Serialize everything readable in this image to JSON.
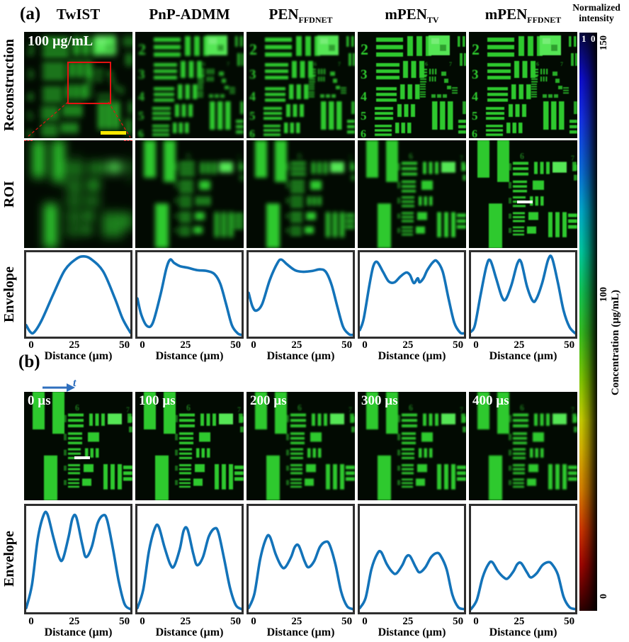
{
  "panel_a": {
    "label": "(a)",
    "columns": [
      {
        "title": "TwIST",
        "sub": ""
      },
      {
        "title": "PnP-ADMM",
        "sub": ""
      },
      {
        "title": "PEN",
        "sub": "FFDNET"
      },
      {
        "title": "mPEN",
        "sub": "TV"
      },
      {
        "title": "mPEN",
        "sub": "FFDNET"
      }
    ],
    "row_labels": {
      "reconstruction": "Reconstruction",
      "roi": "ROI",
      "envelope": "Envelope"
    },
    "concentration_label": "100 µg/mL"
  },
  "panel_b": {
    "label": "(b)",
    "time_axis_label": "t",
    "row_label": "Envelope",
    "times": [
      "0 µs",
      "100 µs",
      "200 µs",
      "300 µs",
      "400 µs"
    ]
  },
  "colorbar": {
    "title_line1": "Normalized",
    "title_line2": "intensity",
    "intensity_max": "1",
    "intensity_min": "0",
    "conc_top": "150",
    "conc_mid": "100",
    "conc_bottom": "0",
    "conc_axis_label": "Concentration (µg/mL)"
  },
  "axis": {
    "xlabel": "Distance (µm)",
    "ticks": [
      "0",
      "25",
      "50"
    ]
  },
  "usaf_digits": [
    "2",
    "3",
    "4",
    "5",
    "6"
  ],
  "roi_digits": [
    "6",
    "7"
  ],
  "colors": {
    "curve": "#1373b9",
    "green": "#2ec92e",
    "bright_green": "#55e655",
    "marker_red": "#e31212",
    "scalebar_yellow": "#ffe800",
    "arrow_blue": "#2f6fbe"
  },
  "chart_data": [
    {
      "type": "line",
      "panel": "a",
      "name": "TwIST",
      "xlabel": "Distance (µm)",
      "xticks": [
        0,
        25,
        50
      ],
      "xlim": [
        0,
        54
      ],
      "ylim": [
        0,
        1
      ],
      "x": [
        0,
        2,
        4,
        8,
        14,
        20,
        26,
        30,
        34,
        40,
        46,
        50,
        54
      ],
      "y": [
        0.12,
        0.04,
        0.03,
        0.18,
        0.5,
        0.8,
        0.94,
        0.97,
        0.93,
        0.78,
        0.45,
        0.2,
        0.03
      ]
    },
    {
      "type": "line",
      "panel": "a",
      "name": "PnP-ADMM",
      "xlabel": "Distance (µm)",
      "xticks": [
        0,
        25,
        50
      ],
      "xlim": [
        0,
        54
      ],
      "ylim": [
        0,
        1
      ],
      "x": [
        0,
        2,
        5,
        8,
        12,
        15,
        17,
        19,
        22,
        26,
        31,
        36,
        40,
        43,
        46,
        49,
        52,
        54
      ],
      "y": [
        0.45,
        0.25,
        0.11,
        0.15,
        0.5,
        0.82,
        0.93,
        0.89,
        0.85,
        0.83,
        0.8,
        0.79,
        0.75,
        0.63,
        0.38,
        0.12,
        0.02,
        0.0
      ]
    },
    {
      "type": "line",
      "panel": "a",
      "name": "PEN_FFDNET",
      "xlabel": "Distance (µm)",
      "xticks": [
        0,
        25,
        50
      ],
      "xlim": [
        0,
        54
      ],
      "ylim": [
        0,
        1
      ],
      "x": [
        0,
        2,
        4,
        7,
        11,
        15,
        17,
        20,
        24,
        28,
        33,
        37,
        40,
        43,
        46,
        49,
        52,
        54
      ],
      "y": [
        0.52,
        0.35,
        0.3,
        0.38,
        0.68,
        0.89,
        0.93,
        0.87,
        0.8,
        0.78,
        0.79,
        0.81,
        0.78,
        0.62,
        0.35,
        0.1,
        0.01,
        0.0
      ]
    },
    {
      "type": "line",
      "panel": "a",
      "name": "mPEN_TV",
      "xlabel": "Distance (µm)",
      "xticks": [
        0,
        25,
        50
      ],
      "xlim": [
        0,
        54
      ],
      "ylim": [
        0,
        1
      ],
      "x": [
        0,
        2,
        5,
        7,
        9,
        12,
        15,
        18,
        21,
        24,
        26,
        28,
        30,
        31,
        33,
        35,
        38,
        40,
        43,
        46,
        49,
        52,
        54
      ],
      "y": [
        0.06,
        0.2,
        0.62,
        0.85,
        0.9,
        0.78,
        0.66,
        0.65,
        0.72,
        0.77,
        0.74,
        0.64,
        0.7,
        0.65,
        0.7,
        0.8,
        0.9,
        0.91,
        0.78,
        0.45,
        0.15,
        0.03,
        0.02
      ]
    },
    {
      "type": "line",
      "panel": "a",
      "name": "mPEN_FFDNET",
      "xlabel": "Distance (µm)",
      "xticks": [
        0,
        25,
        50
      ],
      "xlim": [
        0,
        54
      ],
      "ylim": [
        0,
        1
      ],
      "x": [
        0,
        2,
        5,
        8,
        10,
        13,
        16,
        18,
        21,
        24,
        26,
        29,
        32,
        34,
        37,
        40,
        42,
        45,
        48,
        51,
        54
      ],
      "y": [
        0.04,
        0.12,
        0.5,
        0.85,
        0.92,
        0.7,
        0.47,
        0.44,
        0.62,
        0.88,
        0.9,
        0.6,
        0.42,
        0.45,
        0.65,
        0.93,
        0.95,
        0.65,
        0.3,
        0.1,
        0.02
      ]
    },
    {
      "type": "line",
      "panel": "b",
      "name": "0 µs",
      "xlabel": "Distance (µm)",
      "xticks": [
        0,
        25,
        50
      ],
      "xlim": [
        0,
        54
      ],
      "ylim": [
        0,
        1
      ],
      "x": [
        0,
        3,
        6,
        9,
        11,
        14,
        17,
        19,
        22,
        24,
        26,
        29,
        31,
        34,
        37,
        40,
        42,
        45,
        48,
        51,
        54
      ],
      "y": [
        0.02,
        0.25,
        0.7,
        0.93,
        0.94,
        0.72,
        0.52,
        0.5,
        0.72,
        0.9,
        0.91,
        0.65,
        0.52,
        0.62,
        0.85,
        0.93,
        0.88,
        0.6,
        0.28,
        0.06,
        0.01
      ]
    },
    {
      "type": "line",
      "panel": "b",
      "name": "100 µs",
      "xlabel": "Distance (µm)",
      "xticks": [
        0,
        25,
        50
      ],
      "xlim": [
        0,
        54
      ],
      "ylim": [
        0,
        1
      ],
      "x": [
        0,
        3,
        6,
        9,
        11,
        14,
        17,
        19,
        22,
        24,
        26,
        29,
        31,
        34,
        37,
        40,
        42,
        45,
        48,
        51,
        54
      ],
      "y": [
        0.02,
        0.2,
        0.58,
        0.8,
        0.82,
        0.62,
        0.45,
        0.43,
        0.6,
        0.78,
        0.79,
        0.55,
        0.44,
        0.52,
        0.72,
        0.8,
        0.76,
        0.5,
        0.22,
        0.05,
        0.01
      ]
    },
    {
      "type": "line",
      "panel": "b",
      "name": "200 µs",
      "xlabel": "Distance (µm)",
      "xticks": [
        0,
        25,
        50
      ],
      "xlim": [
        0,
        54
      ],
      "ylim": [
        0,
        1
      ],
      "x": [
        0,
        3,
        6,
        9,
        11,
        14,
        17,
        19,
        22,
        24,
        26,
        29,
        31,
        34,
        37,
        40,
        42,
        45,
        48,
        51,
        54
      ],
      "y": [
        0.02,
        0.16,
        0.5,
        0.7,
        0.72,
        0.55,
        0.43,
        0.42,
        0.52,
        0.62,
        0.63,
        0.48,
        0.42,
        0.48,
        0.62,
        0.67,
        0.64,
        0.45,
        0.18,
        0.04,
        0.01
      ]
    },
    {
      "type": "line",
      "panel": "b",
      "name": "300 µs",
      "xlabel": "Distance (µm)",
      "xticks": [
        0,
        25,
        50
      ],
      "xlim": [
        0,
        54
      ],
      "ylim": [
        0,
        1
      ],
      "x": [
        0,
        3,
        6,
        9,
        11,
        14,
        17,
        19,
        22,
        24,
        26,
        29,
        31,
        34,
        37,
        40,
        42,
        45,
        48,
        51,
        54
      ],
      "y": [
        0.02,
        0.12,
        0.4,
        0.55,
        0.57,
        0.45,
        0.37,
        0.36,
        0.44,
        0.52,
        0.53,
        0.42,
        0.37,
        0.42,
        0.52,
        0.56,
        0.53,
        0.4,
        0.15,
        0.03,
        0.01
      ]
    },
    {
      "type": "line",
      "panel": "b",
      "name": "400 µs",
      "xlabel": "Distance (µm)",
      "xticks": [
        0,
        25,
        50
      ],
      "xlim": [
        0,
        54
      ],
      "ylim": [
        0,
        1
      ],
      "x": [
        0,
        3,
        6,
        9,
        11,
        14,
        17,
        19,
        22,
        24,
        26,
        29,
        31,
        34,
        37,
        40,
        42,
        45,
        48,
        51,
        54
      ],
      "y": [
        0.01,
        0.1,
        0.32,
        0.45,
        0.47,
        0.38,
        0.32,
        0.31,
        0.38,
        0.45,
        0.46,
        0.37,
        0.32,
        0.36,
        0.44,
        0.47,
        0.45,
        0.35,
        0.13,
        0.03,
        0.01
      ]
    }
  ]
}
